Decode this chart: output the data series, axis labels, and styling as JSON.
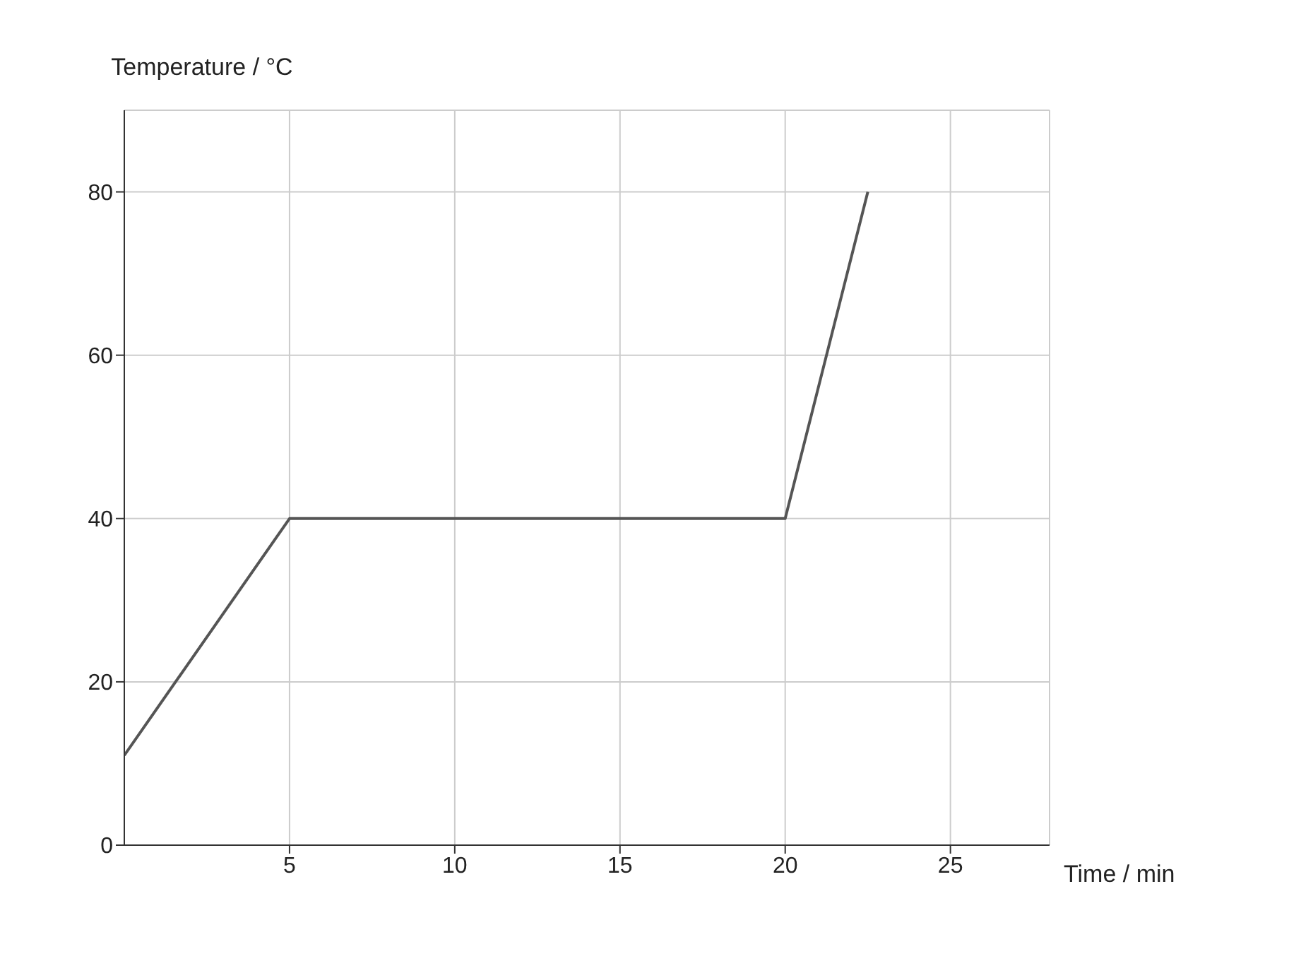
{
  "chart_data": {
    "type": "line",
    "xlabel": "Time / min",
    "ylabel": "Temperature / °C",
    "x": [
      0,
      5,
      20,
      22.5
    ],
    "series": [
      {
        "color": "#555555",
        "values": [
          11,
          40,
          40,
          80
        ]
      }
    ],
    "xlim": [
      0,
      28
    ],
    "xticks": [
      5,
      10,
      15,
      20,
      25
    ],
    "ylim": [
      0,
      90
    ],
    "yticks": [
      0,
      20,
      40,
      60,
      80
    ],
    "grid": true,
    "marker": "none",
    "line_style": "solid"
  }
}
